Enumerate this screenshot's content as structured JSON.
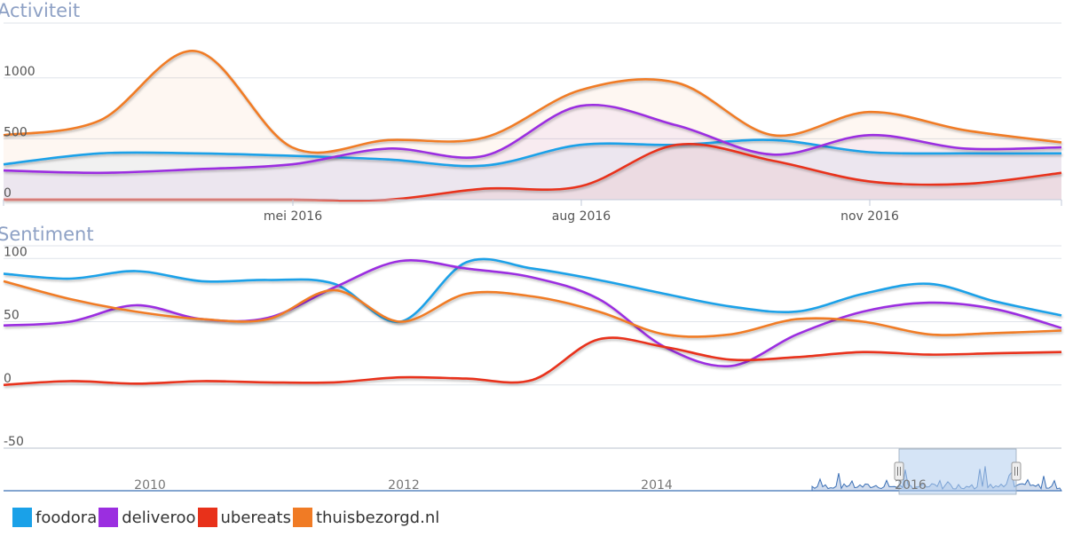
{
  "chart_data": [
    {
      "type": "area",
      "title": "Activiteit",
      "x_ticks": [
        "mei 2016",
        "aug 2016",
        "nov 2016"
      ],
      "y_ticks": [
        "0",
        "500",
        "1000"
      ],
      "ylim": [
        0,
        1450
      ],
      "grid": true,
      "x": [
        "2016-02-01",
        "2016-03-01",
        "2016-04-01",
        "2016-05-01",
        "2016-06-01",
        "2016-07-01",
        "2016-08-01",
        "2016-09-01",
        "2016-10-01",
        "2016-11-01",
        "2016-12-01",
        "2017-01-01"
      ],
      "series": [
        {
          "name": "foodora",
          "color": "#1aa1e8",
          "values": [
            290,
            380,
            380,
            360,
            330,
            280,
            450,
            450,
            490,
            390,
            380,
            380
          ]
        },
        {
          "name": "deliveroo",
          "color": "#9b2ee0",
          "values": [
            240,
            220,
            250,
            290,
            420,
            360,
            770,
            610,
            370,
            530,
            420,
            430
          ]
        },
        {
          "name": "ubereats",
          "color": "#e8311a",
          "values": [
            0,
            0,
            0,
            0,
            0,
            90,
            110,
            450,
            320,
            150,
            130,
            220
          ]
        },
        {
          "name": "thuisbezorgd.nl",
          "color": "#f07b25",
          "values": [
            530,
            650,
            1220,
            430,
            490,
            510,
            900,
            960,
            530,
            720,
            570,
            470
          ]
        }
      ]
    },
    {
      "type": "line",
      "title": "Sentiment",
      "y_ticks": [
        "-50",
        "0",
        "50",
        "100"
      ],
      "ylim": [
        -50,
        110
      ],
      "grid": true,
      "x": [
        "2009",
        "2009.5",
        "2010",
        "2010.5",
        "2011",
        "2011.5",
        "2012",
        "2012.5",
        "2013",
        "2013.5",
        "2014",
        "2014.5",
        "2015",
        "2015.5",
        "2016",
        "2016.5",
        "2017"
      ],
      "series": [
        {
          "name": "foodora",
          "color": "#1aa1e8",
          "values": [
            88,
            84,
            90,
            82,
            83,
            80,
            50,
            97,
            92,
            83,
            72,
            62,
            58,
            72,
            80,
            66,
            55
          ]
        },
        {
          "name": "deliveroo",
          "color": "#9b2ee0",
          "values": [
            47,
            50,
            63,
            52,
            53,
            77,
            98,
            92,
            85,
            68,
            30,
            15,
            40,
            58,
            65,
            60,
            45
          ]
        },
        {
          "name": "ubereats",
          "color": "#e8311a",
          "values": [
            0,
            3,
            1,
            3,
            2,
            2,
            6,
            5,
            4,
            36,
            30,
            20,
            22,
            26,
            24,
            25,
            26
          ]
        },
        {
          "name": "thuisbezorgd.nl",
          "color": "#f07b25",
          "values": [
            82,
            68,
            58,
            52,
            52,
            75,
            50,
            72,
            70,
            58,
            40,
            40,
            52,
            50,
            40,
            41,
            43
          ]
        }
      ]
    }
  ],
  "navigator": {
    "x_ticks": [
      "2010",
      "2012",
      "2014",
      "2016"
    ]
  },
  "legend": [
    {
      "label": "foodora",
      "color": "#1aa1e8"
    },
    {
      "label": "deliveroo",
      "color": "#9b2ee0"
    },
    {
      "label": "ubereats",
      "color": "#e8311a"
    },
    {
      "label": "thuisbezorgd.nl",
      "color": "#f07b25"
    }
  ]
}
